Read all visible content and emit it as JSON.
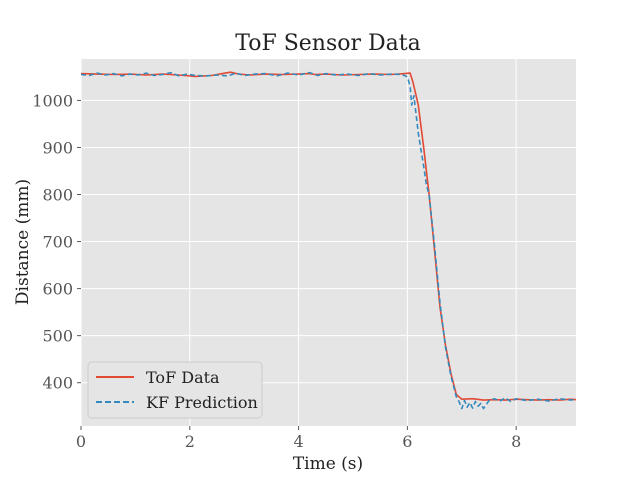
{
  "chart_data": {
    "type": "line",
    "title": "ToF Sensor Data",
    "xlabel": "Time (s)",
    "ylabel": "Distance (mm)",
    "xlim": [
      0,
      9.1
    ],
    "ylim": [
      308,
      1088
    ],
    "xticks": [
      0,
      2,
      4,
      6,
      8
    ],
    "yticks": [
      400,
      500,
      600,
      700,
      800,
      900,
      1000
    ],
    "grid": true,
    "legend_position": "lower-left",
    "series": [
      {
        "name": "ToF Data",
        "style": "solid",
        "color": "#E24A33",
        "x": [
          0,
          0.3,
          0.6,
          0.9,
          1.2,
          1.5,
          1.8,
          2.1,
          2.4,
          2.6,
          2.75,
          2.9,
          3.1,
          3.4,
          3.7,
          4.0,
          4.2,
          4.3,
          4.5,
          4.8,
          5.1,
          5.4,
          5.7,
          5.95,
          6.05,
          6.1,
          6.2,
          6.3,
          6.4,
          6.5,
          6.6,
          6.7,
          6.8,
          6.9,
          7.0,
          7.2,
          7.4,
          7.6,
          7.8,
          8.0,
          8.2,
          8.4,
          8.6,
          8.8,
          9.0,
          9.1
        ],
        "values": [
          1057,
          1056,
          1055,
          1056,
          1054,
          1056,
          1054,
          1051,
          1053,
          1057,
          1060,
          1056,
          1054,
          1056,
          1055,
          1056,
          1057,
          1055,
          1056,
          1054,
          1055,
          1056,
          1055,
          1057,
          1058,
          1040,
          990,
          900,
          800,
          680,
          560,
          480,
          420,
          375,
          365,
          366,
          363,
          364,
          363,
          365,
          364,
          363,
          364,
          363,
          365,
          364
        ]
      },
      {
        "name": "KF Prediction",
        "style": "dashed",
        "color": "#348ABD",
        "x": [
          0,
          0.15,
          0.3,
          0.45,
          0.6,
          0.75,
          0.9,
          1.05,
          1.2,
          1.35,
          1.5,
          1.65,
          1.8,
          1.95,
          2.1,
          2.3,
          2.5,
          2.7,
          2.85,
          3.0,
          3.2,
          3.4,
          3.6,
          3.8,
          4.0,
          4.2,
          4.35,
          4.5,
          4.7,
          4.9,
          5.1,
          5.3,
          5.5,
          5.7,
          5.9,
          6.0,
          6.05,
          6.08,
          6.12,
          6.2,
          6.3,
          6.35,
          6.4,
          6.5,
          6.6,
          6.7,
          6.8,
          6.9,
          6.95,
          7.0,
          7.05,
          7.1,
          7.15,
          7.2,
          7.25,
          7.3,
          7.35,
          7.4,
          7.5,
          7.6,
          7.7,
          7.8,
          7.9,
          8.0,
          8.2,
          8.4,
          8.6,
          8.8,
          9.0,
          9.1
        ],
        "values": [
          1055,
          1053,
          1058,
          1054,
          1057,
          1052,
          1056,
          1054,
          1058,
          1053,
          1055,
          1059,
          1052,
          1056,
          1053,
          1052,
          1054,
          1052,
          1058,
          1053,
          1056,
          1057,
          1052,
          1058,
          1054,
          1059,
          1053,
          1057,
          1054,
          1056,
          1053,
          1057,
          1054,
          1056,
          1055,
          1050,
          1030,
          990,
          1010,
          930,
          860,
          820,
          800,
          690,
          570,
          475,
          415,
          370,
          360,
          345,
          362,
          348,
          358,
          346,
          360,
          350,
          356,
          345,
          362,
          366,
          361,
          368,
          360,
          366,
          362,
          365,
          361,
          366,
          363,
          365
        ]
      }
    ]
  }
}
